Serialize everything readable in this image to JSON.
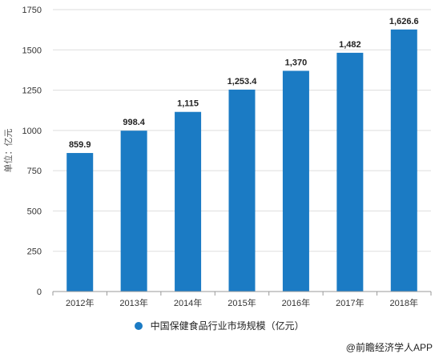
{
  "chart_data": {
    "type": "bar",
    "categories": [
      "2012年",
      "2013年",
      "2014年",
      "2015年",
      "2016年",
      "2017年",
      "2018年"
    ],
    "series": [
      {
        "name": "中国保健食品行业市场规模（亿元）",
        "values": [
          859.9,
          998.4,
          1115,
          1253.4,
          1370,
          1482,
          1626.6
        ],
        "labels": [
          "859.9",
          "998.4",
          "1,115",
          "1,253.4",
          "1,370",
          "1,482",
          "1,626.6"
        ]
      }
    ],
    "ylabel": "单位：亿元",
    "ylim": [
      0,
      1750
    ],
    "yticks": [
      "0",
      "250",
      "500",
      "750",
      "1000",
      "1250",
      "1500",
      "1750"
    ],
    "grid": true,
    "legend": "bottom"
  },
  "colors": {
    "bar": "#1b7bc4",
    "grid": "#dddddd",
    "axis": "#999999"
  },
  "credit": "@前瞻经济学人APP"
}
